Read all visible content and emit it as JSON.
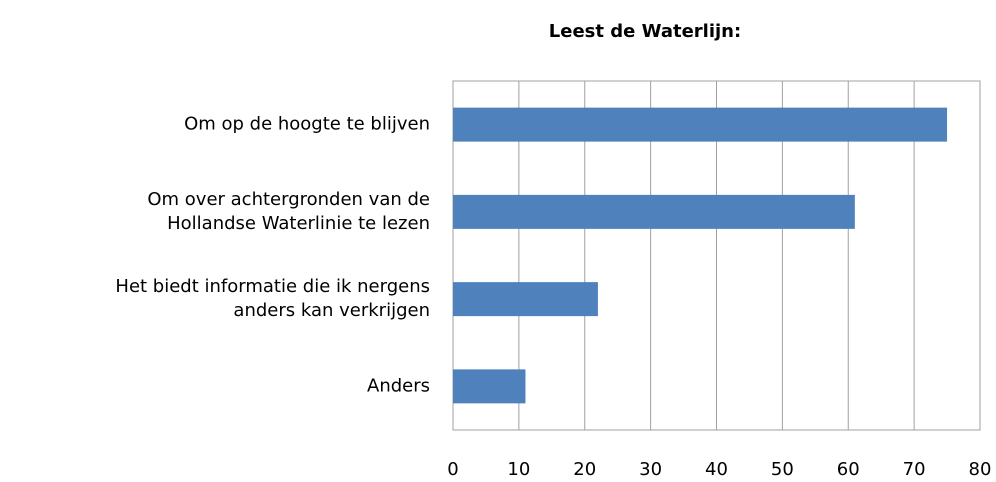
{
  "chart_data": {
    "type": "bar",
    "orientation": "horizontal",
    "title": "Leest de Waterlijn:",
    "categories": [
      "Om op de hoogte te blijven",
      "Om over achtergronden van de\nHollandse Waterlinie te lezen",
      "Het biedt informatie die ik nergens\nanders kan verkrijgen",
      "Anders"
    ],
    "values": [
      75,
      61,
      22,
      11
    ],
    "color": "#4f81bd",
    "xlim": [
      0,
      80
    ],
    "xticks": [
      0,
      10,
      20,
      30,
      40,
      50,
      60,
      70,
      80
    ],
    "grid": true
  }
}
